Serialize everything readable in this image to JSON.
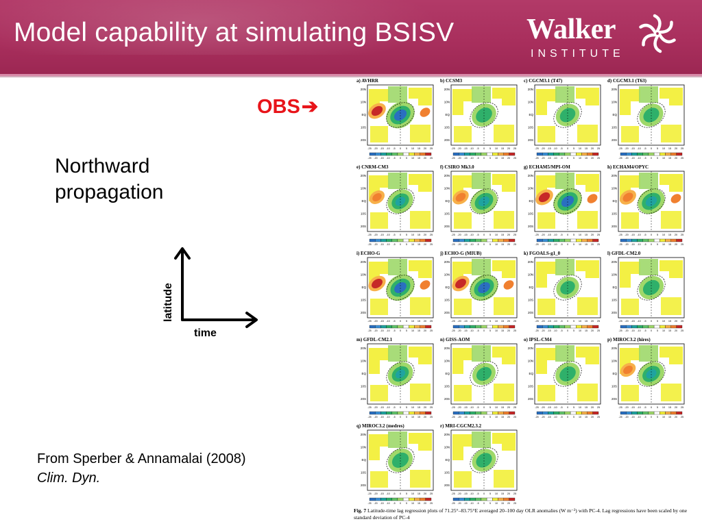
{
  "slide": {
    "title": "Model capability at simulating BSISV",
    "logo": {
      "word": "Walker",
      "sub": "INSTITUTE"
    },
    "obs_label": "OBS",
    "obs_arrow": "➔",
    "northward": [
      "Northward",
      "propagation"
    ],
    "axis_y_label": "latitude",
    "axis_x_label": "time",
    "citation": {
      "line1": "From Sperber & Annamalai (2008)",
      "line2": "Clim. Dyn."
    }
  },
  "figure": {
    "panels": [
      {
        "label": "a) AVHRR",
        "strength": 1.0
      },
      {
        "label": "b) CCSM3",
        "strength": 0.45
      },
      {
        "label": "c) CGCM3.1 (T47)",
        "strength": 0.35
      },
      {
        "label": "d) CGCM3.1 (T63)",
        "strength": 0.4
      },
      {
        "label": "e) CNRM-CM3",
        "strength": 0.6
      },
      {
        "label": "f) CSIRO Mk3.0",
        "strength": 0.75
      },
      {
        "label": "g) ECHAM5/MPI-OM",
        "strength": 1.0
      },
      {
        "label": "h) ECHAM4/OPYC",
        "strength": 0.8
      },
      {
        "label": "i) ECHO-G",
        "strength": 0.95
      },
      {
        "label": "j) ECHO-G (MIUB)",
        "strength": 0.95
      },
      {
        "label": "k) FGOALS-g1_0",
        "strength": 0.25
      },
      {
        "label": "l) GFDL-CM2.0",
        "strength": 0.5
      },
      {
        "label": "m) GFDL-CM2.1",
        "strength": 0.55
      },
      {
        "label": "n) GISS-AOM",
        "strength": 0.3
      },
      {
        "label": "o) IPSL-CM4",
        "strength": 0.45
      },
      {
        "label": "p) MIROC3.2 (hires)",
        "strength": 0.65
      },
      {
        "label": "q) MIROC3.2 (medres)",
        "strength": 0.5
      },
      {
        "label": "r) MRI-CGCM2.3.2",
        "strength": 0.4
      }
    ],
    "colorbar_ticks": [
      "-25",
      "-20",
      "-15",
      "-10",
      "-5",
      "0",
      "5",
      "10",
      "15",
      "20",
      "25"
    ],
    "y_ticks": [
      "20N",
      "10N",
      "EQ",
      "10S",
      "20S"
    ],
    "caption_label": "Fig. 7",
    "caption_text": "Latitude-time lag regression plots of 71.25°–83.75°E averaged 20–100 day OLR anomalies (W m⁻²) with PC-4. Lag regressions have been scaled by one standard deviation of PC-4",
    "colors": {
      "warm_strong": "#c62828",
      "warm": "#f08030",
      "warm_light": "#f7b04a",
      "yellow": "#f2ef3a",
      "green_light": "#9fd86a",
      "green": "#2fb06a",
      "teal": "#1fa3a0",
      "blue": "#2a6fc0"
    }
  }
}
